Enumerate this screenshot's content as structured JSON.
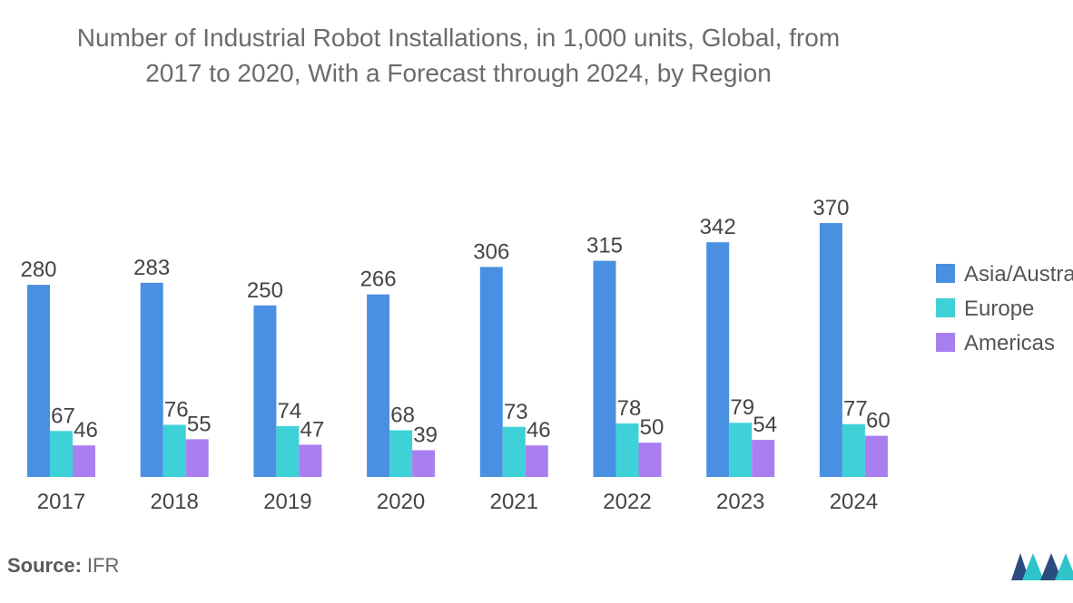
{
  "chart_data": {
    "type": "bar",
    "title_lines": [
      "Number of Industrial Robot Installations, in 1,000 units, Global, from",
      "2017 to 2020, With a Forecast through 2024, by Region"
    ],
    "categories": [
      "2017",
      "2018",
      "2019",
      "2020",
      "2021",
      "2022",
      "2023",
      "2024"
    ],
    "series": [
      {
        "name": "Asia/Australia",
        "color": "#4a90e2",
        "values": [
          280,
          283,
          250,
          266,
          306,
          315,
          342,
          370
        ]
      },
      {
        "name": "Europe",
        "color": "#3fd1d8",
        "values": [
          67,
          76,
          74,
          68,
          73,
          78,
          79,
          77
        ]
      },
      {
        "name": "Americas",
        "color": "#a97ff0",
        "values": [
          46,
          55,
          47,
          39,
          46,
          50,
          54,
          60
        ]
      }
    ],
    "ylim": [
      0,
      370
    ],
    "grid": false,
    "legend_position": "right"
  },
  "footer": {
    "source_label": "Source:",
    "source_value": "IFR"
  },
  "logo": {
    "name": "mordor-intelligence-logo",
    "colors": [
      "#2b4c7e",
      "#2ec4c9"
    ]
  }
}
